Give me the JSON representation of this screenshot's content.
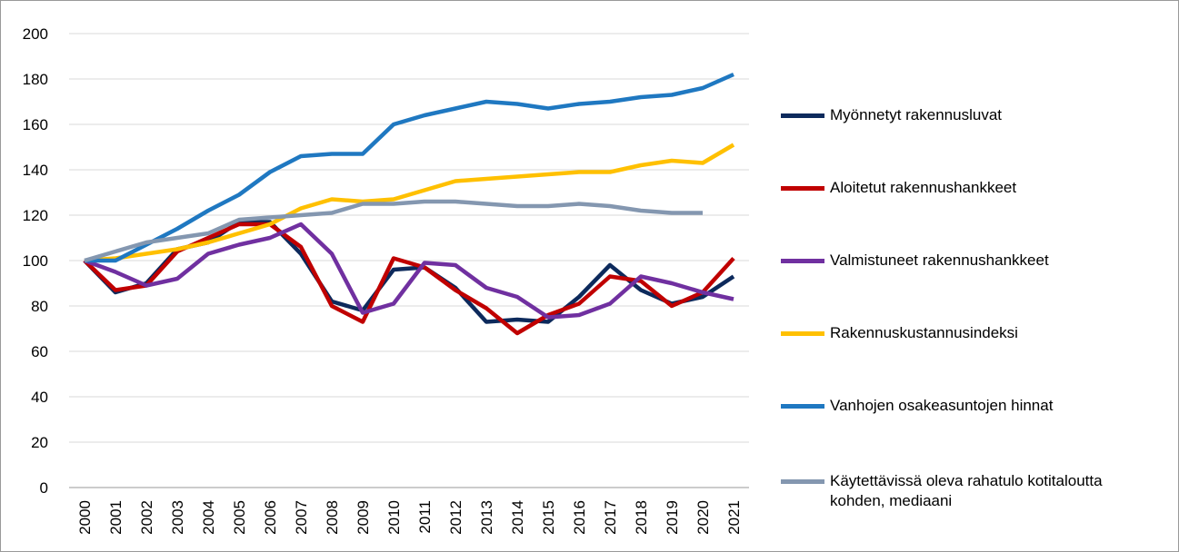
{
  "chart_data": {
    "type": "line",
    "categories": [
      "2000",
      "2001",
      "2002",
      "2003",
      "2004",
      "2005",
      "2006",
      "2007",
      "2008",
      "2009",
      "2010",
      "2011",
      "2012",
      "2013",
      "2014",
      "2015",
      "2016",
      "2017",
      "2018",
      "2019",
      "2020",
      "2021"
    ],
    "series": [
      {
        "name": "Myönnetyt rakennusluvat",
        "color": "#0d2a5c",
        "values": [
          100,
          86,
          90,
          105,
          108,
          117,
          117,
          103,
          82,
          78,
          96,
          97,
          88,
          73,
          74,
          73,
          84,
          98,
          87,
          81,
          84,
          93
        ]
      },
      {
        "name": "Aloitetut rakennushankkeet",
        "color": "#c00000",
        "values": [
          100,
          87,
          89,
          104,
          110,
          116,
          116,
          106,
          80,
          73,
          101,
          97,
          87,
          79,
          68,
          76,
          81,
          93,
          91,
          80,
          86,
          101
        ]
      },
      {
        "name": "Valmistuneet rakennushankkeet",
        "color": "#7030a0",
        "values": [
          100,
          95,
          89,
          92,
          103,
          107,
          110,
          116,
          103,
          77,
          81,
          99,
          98,
          88,
          84,
          75,
          76,
          81,
          93,
          90,
          86,
          83
        ]
      },
      {
        "name": "Rakennuskustannusindeksi",
        "color": "#ffc000",
        "values": [
          100,
          101,
          103,
          105,
          108,
          112,
          116,
          123,
          127,
          126,
          127,
          131,
          135,
          136,
          137,
          138,
          139,
          139,
          142,
          144,
          143,
          151
        ]
      },
      {
        "name": "Vanhojen osakeasuntojen hinnat",
        "color": "#1f78c1",
        "values": [
          100,
          100,
          107,
          114,
          122,
          129,
          139,
          146,
          147,
          147,
          160,
          164,
          167,
          170,
          169,
          167,
          169,
          170,
          172,
          173,
          176,
          182
        ]
      },
      {
        "name": "Käytettävissä oleva rahatulo kotitaloutta kohden, mediaani",
        "color": "#8497b0",
        "values": [
          100,
          104,
          108,
          110,
          112,
          118,
          119,
          120,
          121,
          125,
          125,
          126,
          126,
          125,
          124,
          124,
          125,
          124,
          122,
          121,
          121,
          null
        ]
      }
    ],
    "ylim": [
      0,
      200
    ],
    "yticks": [
      0,
      20,
      40,
      60,
      80,
      100,
      120,
      140,
      160,
      180,
      200
    ],
    "grid": true,
    "legend": "right"
  }
}
